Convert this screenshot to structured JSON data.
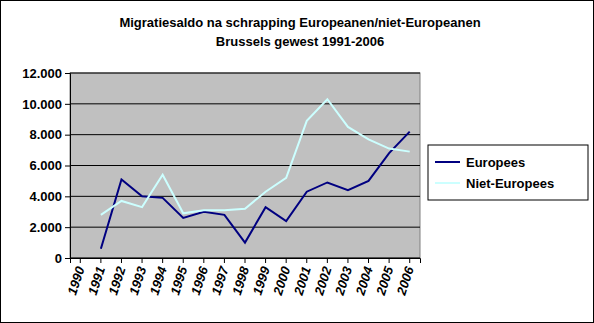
{
  "chart_data": {
    "type": "line",
    "title": "Migratiesaldo na schrapping Europeanen/niet-Europeanen",
    "subtitle": "Brussels gewest 1991-2006",
    "categories": [
      "1990",
      "1991",
      "1992",
      "1993",
      "1994",
      "1995",
      "1996",
      "1997",
      "1998",
      "1999",
      "2000",
      "2001",
      "2002",
      "2003",
      "2004",
      "2005",
      "2006"
    ],
    "series": [
      {
        "name": "Europees",
        "color": "#000080",
        "values": [
          null,
          600,
          5100,
          4000,
          3900,
          2600,
          3000,
          2800,
          1000,
          3300,
          2400,
          4300,
          4900,
          4400,
          5000,
          6800,
          8200
        ]
      },
      {
        "name": "Niet-Europees",
        "color": "#ccffff",
        "values": [
          null,
          2800,
          3700,
          3300,
          5400,
          2900,
          3100,
          3100,
          3200,
          4300,
          5200,
          8900,
          10300,
          8500,
          7700,
          7100,
          6900
        ]
      }
    ],
    "ylim": [
      0,
      12000
    ],
    "yticks": [
      0,
      {
        "value": 2000,
        "label": "2.000"
      },
      {
        "value": 4000,
        "label": "4.000"
      },
      {
        "value": 6000,
        "label": "6.000"
      },
      {
        "value": 8000,
        "label": "8.000"
      },
      {
        "value": 10000,
        "label": "10.000"
      },
      {
        "value": 12000,
        "label": "12.000"
      }
    ],
    "grid": true,
    "legend": "right"
  }
}
